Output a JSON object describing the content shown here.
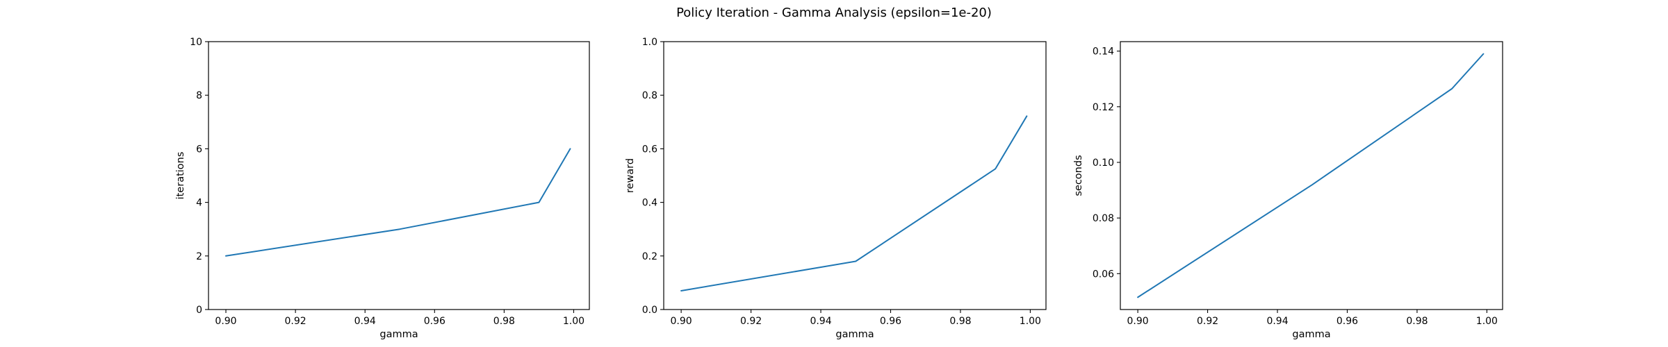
{
  "figure_title": "Policy Iteration - Gamma Analysis (epsilon=1e-20)",
  "colors": {
    "line": "#1f77b4",
    "axes": "#000000",
    "background": "#ffffff"
  },
  "chart_data": [
    {
      "type": "line",
      "title": "",
      "xlabel": "gamma",
      "ylabel": "iterations",
      "x": [
        0.9,
        0.95,
        0.99,
        0.999
      ],
      "series": [
        {
          "values": [
            2,
            3,
            4,
            6
          ]
        }
      ],
      "xlim": [
        0.895,
        1.0045
      ],
      "ylim": [
        0,
        10
      ],
      "xticks": [
        0.9,
        0.92,
        0.94,
        0.96,
        0.98,
        1.0
      ],
      "xtick_labels": [
        "0.90",
        "0.92",
        "0.94",
        "0.96",
        "0.98",
        "1.00"
      ],
      "yticks": [
        0,
        2,
        4,
        6,
        8,
        10
      ],
      "ytick_labels": [
        "0",
        "2",
        "4",
        "6",
        "8",
        "10"
      ],
      "grid": false,
      "legend": "none"
    },
    {
      "type": "line",
      "title": "",
      "xlabel": "gamma",
      "ylabel": "reward",
      "x": [
        0.9,
        0.95,
        0.99,
        0.999
      ],
      "series": [
        {
          "values": [
            0.07,
            0.18,
            0.525,
            0.722
          ]
        }
      ],
      "xlim": [
        0.895,
        1.0045
      ],
      "ylim": [
        0,
        1.0
      ],
      "xticks": [
        0.9,
        0.92,
        0.94,
        0.96,
        0.98,
        1.0
      ],
      "xtick_labels": [
        "0.90",
        "0.92",
        "0.94",
        "0.96",
        "0.98",
        "1.00"
      ],
      "yticks": [
        0,
        0.2,
        0.4,
        0.6,
        0.8,
        1.0
      ],
      "ytick_labels": [
        "0.0",
        "0.2",
        "0.4",
        "0.6",
        "0.8",
        "1.0"
      ],
      "grid": false,
      "legend": "none"
    },
    {
      "type": "line",
      "title": "",
      "xlabel": "gamma",
      "ylabel": "seconds",
      "x": [
        0.9,
        0.95,
        0.99,
        0.999
      ],
      "series": [
        {
          "values": [
            0.0515,
            0.092,
            0.1265,
            0.139
          ]
        }
      ],
      "xlim": [
        0.895,
        1.0045
      ],
      "ylim": [
        0.0471,
        0.1434
      ],
      "xticks": [
        0.9,
        0.92,
        0.94,
        0.96,
        0.98,
        1.0
      ],
      "xtick_labels": [
        "0.90",
        "0.92",
        "0.94",
        "0.96",
        "0.98",
        "1.00"
      ],
      "yticks": [
        0.06,
        0.08,
        0.1,
        0.12,
        0.14
      ],
      "ytick_labels": [
        "0.06",
        "0.08",
        "0.10",
        "0.12",
        "0.14"
      ],
      "grid": false,
      "legend": "none"
    }
  ]
}
